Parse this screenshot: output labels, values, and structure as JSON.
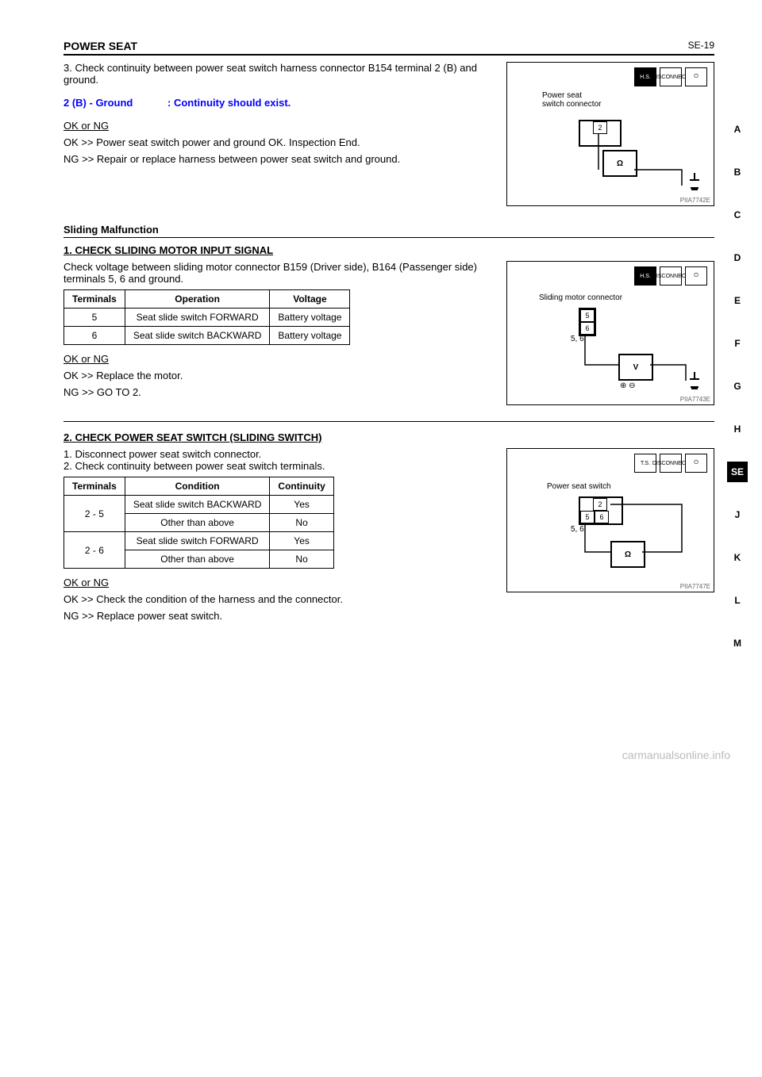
{
  "header": {
    "title": "POWER SEAT",
    "page_label": "SE-19"
  },
  "sidebar": {
    "items": [
      "A",
      "B",
      "C",
      "D",
      "E",
      "F",
      "G",
      "H",
      "SE",
      "J",
      "K",
      "L",
      "M"
    ],
    "active": "SE"
  },
  "block1": {
    "step_line": "3. Check continuity between power seat switch harness connector B154 terminal 2 (B) and ground.",
    "measure_left": "2 (B) - Ground",
    "measure_right": ": Continuity should exist.",
    "ok_prompt": "OK or NG",
    "ok_line": "OK >> Power seat switch power and ground OK. Inspection End.",
    "ng_line": "NG >> Repair or replace harness between power seat switch and ground.",
    "figure": {
      "icon_disconnect": "DISCONNECT",
      "label": "Power seat\nswitch connector",
      "pin": "2",
      "meter": "Ω",
      "code": "PIIA7742E"
    }
  },
  "sliding": {
    "heading": "Sliding Malfunction",
    "check1": {
      "title": "1. CHECK SLIDING MOTOR INPUT SIGNAL",
      "intro": "Check voltage between sliding motor connector B159 (Driver side), B164 (Passenger side) terminals 5, 6 and ground.",
      "table": {
        "headers": [
          "Terminals",
          "Operation",
          "Voltage"
        ],
        "rows": [
          [
            "5",
            "Seat slide switch FORWARD",
            "Battery voltage"
          ],
          [
            "6",
            "Seat slide switch BACKWARD",
            "Battery voltage"
          ]
        ]
      },
      "figure": {
        "icon_disconnect": "DISCONNECT",
        "label": "Sliding motor connector",
        "pins": [
          "5",
          "6"
        ],
        "pins_label": "5, 6",
        "meter": "V",
        "code": "PIIA7743E"
      },
      "ok_prompt": "OK or NG",
      "ok_line": "OK >> Replace the motor.",
      "ng_line": "NG >> GO TO 2."
    },
    "check2": {
      "title": "2. CHECK POWER SEAT SWITCH (SLIDING SWITCH)",
      "step1": "1. Disconnect power seat switch connector.",
      "step2": "2. Check continuity between power seat switch terminals.",
      "table": {
        "headers": [
          "Terminals",
          "Condition",
          "Continuity"
        ],
        "rows": [
          [
            "2 - 5",
            "Seat slide switch BACKWARD",
            "Yes"
          ],
          [
            "2 - 5",
            "Other than above",
            "No"
          ],
          [
            "2 - 6",
            "Seat slide switch FORWARD",
            "Yes"
          ],
          [
            "2 - 6",
            "Other than above",
            "No"
          ]
        ]
      },
      "figure": {
        "icon_disconnect": "DISCONNECT",
        "label": "Power seat switch",
        "pins": [
          "2",
          "5",
          "6"
        ],
        "pins_label": "5, 6",
        "meter": "Ω",
        "code": "PIIA7747E"
      },
      "ok_prompt": "OK or NG",
      "ok_line": "OK >> Check the condition of the harness and the connector.",
      "ng_line": "NG >> Replace power seat switch."
    }
  },
  "footer": {
    "watermark": "carmanualsonline.info"
  }
}
